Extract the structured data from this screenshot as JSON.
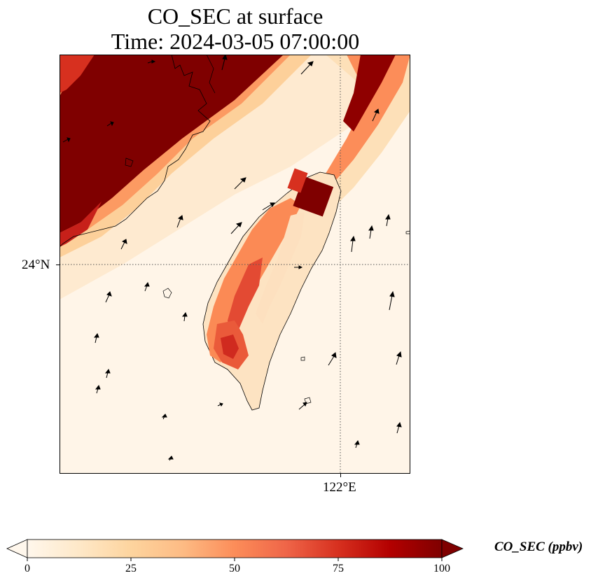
{
  "title": {
    "line1": "CO_SEC at surface",
    "line2": "Time: 2024-03-05 07:00:00"
  },
  "axes": {
    "lat_label": "24°N",
    "lon_label": "122°E",
    "gridline_style": "dotted"
  },
  "field": {
    "variable": "CO_SEC",
    "colormap": "OrRd",
    "range": [
      0,
      100
    ],
    "colors": {
      "low": "#fff7ec",
      "mid_low": "#fdd49e",
      "mid": "#fc8d59",
      "high": "#d7301f",
      "max": "#7f0000"
    }
  },
  "colorbar": {
    "label": "CO_SEC (ppbv)",
    "ticks": [
      "0",
      "25",
      "50",
      "75",
      "100"
    ],
    "extend": "both"
  },
  "map_features": {
    "coastline_color": "#000000",
    "wind_vectors": "black arrows"
  }
}
